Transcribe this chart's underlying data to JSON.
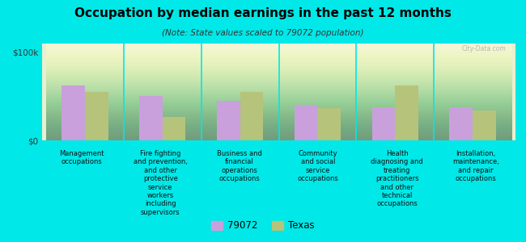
{
  "title": "Occupation by median earnings in the past 12 months",
  "subtitle": "(Note: State values scaled to 79072 population)",
  "background_color": "#00e8e8",
  "plot_bg_top": "#e8f0d0",
  "plot_bg_bottom": "#c8dca8",
  "categories": [
    "Management\noccupations",
    "Fire fighting\nand prevention,\nand other\nprotective\nservice\nworkers\nincluding\nsupervisors",
    "Business and\nfinancial\noperations\noccupations",
    "Community\nand social\nservice\noccupations",
    "Health\ndiagnosing and\ntreating\npractitioners\nand other\ntechnical\noccupations",
    "Installation,\nmaintenance,\nand repair\noccupations"
  ],
  "values_79072": [
    62000,
    50000,
    45000,
    40000,
    38000,
    38000
  ],
  "values_texas": [
    55000,
    27000,
    55000,
    37000,
    62000,
    34000
  ],
  "color_79072": "#c9a0dc",
  "color_texas": "#b5c47a",
  "ylabel_ticks": [
    "$0",
    "$100k"
  ],
  "ytick_values": [
    0,
    100000
  ],
  "legend_labels": [
    "79072",
    "Texas"
  ],
  "watermark": "City-Data.com",
  "ylim_max": 110000
}
